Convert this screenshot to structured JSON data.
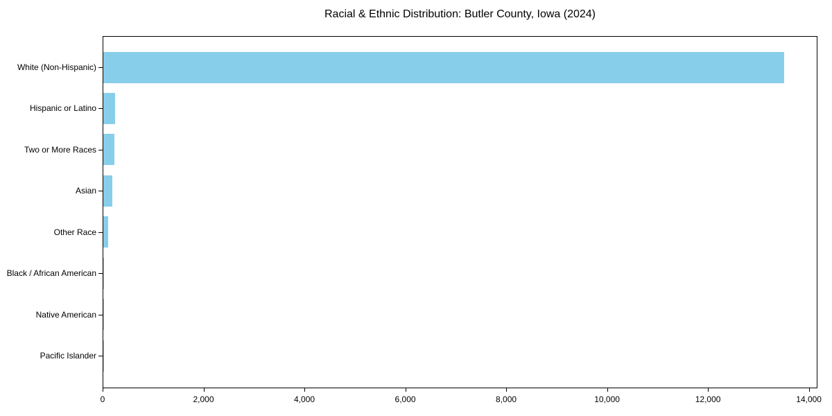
{
  "chart_data": {
    "type": "bar",
    "orientation": "horizontal",
    "title": "Racial & Ethnic Distribution: Butler County, Iowa (2024)",
    "categories": [
      "White (Non-Hispanic)",
      "Hispanic or Latino",
      "Two or More Races",
      "Asian",
      "Other Race",
      "Black / African American",
      "Native American",
      "Pacific Islander"
    ],
    "values": [
      13500,
      240,
      225,
      180,
      100,
      20,
      10,
      5
    ],
    "xlabel": "",
    "ylabel": "",
    "xlim": [
      0,
      14170
    ],
    "x_tick_values": [
      0,
      2000,
      4000,
      6000,
      8000,
      10000,
      12000,
      14000
    ],
    "x_tick_labels": [
      "0",
      "2,000",
      "4,000",
      "6,000",
      "8,000",
      "10,000",
      "12,000",
      "14,000"
    ],
    "grid": false,
    "legend": false,
    "bar_color": "#87CEEB",
    "axis_color": "#000000",
    "text_color": "#000000",
    "background_color": "#FFFFFF"
  }
}
